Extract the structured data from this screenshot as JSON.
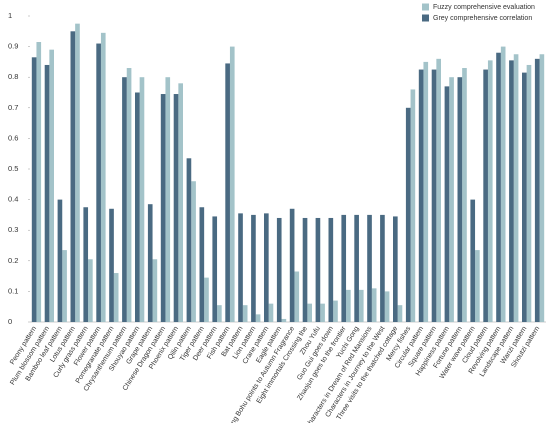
{
  "chart_data": {
    "type": "bar",
    "categories": [
      "Peony pattern",
      "Plum blossom pattern",
      "Bamboo leaf pattern",
      "Lotus pattern",
      "Curly grass pattern",
      "Flower pattern",
      "Pomegranate pattern",
      "Chrysanthemum pattern",
      "Shouyao pattern",
      "Grape pattern",
      "Chinese Dragon pattern",
      "Phoenix pattern",
      "Qilin pattern",
      "Tiger pattern",
      "Deer pattern",
      "Fish pattern",
      "Bat pattern",
      "Lion pattern",
      "Crane pattern",
      "Eagle pattern",
      "Tang Bohu points to Autumn Fragrance",
      "Eight immortals Crossing the",
      "Zhou Yufu",
      "Guo Gui goes down",
      "Zhaojun goes to the frontier",
      "Yuchi Gong",
      "Characters in Dream of Red Mansions",
      "Characters in Journey to the West",
      "Three visits to the thatched cottage",
      "Mercy fishes",
      "Circular pattern",
      "Square pattern",
      "Happiness pattern",
      "Fortune pattern",
      "Water wave pattern",
      "Cloud pattern",
      "Revolving pattern",
      "Landscape pattern",
      "Wanzi pattern",
      "Shoutzi pattern"
    ],
    "series": [
      {
        "name": "Fuzzy comprehensive evaluation",
        "color": "#a3c3c9",
        "values": [
          0.915,
          0.89,
          0.235,
          0.975,
          0.205,
          0.945,
          0.16,
          0.83,
          0.8,
          0.205,
          0.8,
          0.78,
          0.46,
          0.145,
          0.055,
          0.9,
          0.055,
          0.025,
          0.06,
          0.01,
          0.165,
          0.06,
          0.06,
          0.07,
          0.105,
          0.105,
          0.11,
          0.1,
          0.055,
          0.76,
          0.85,
          0.86,
          0.8,
          0.83,
          0.235,
          0.855,
          0.9,
          0.875,
          0.84,
          0.875
        ]
      },
      {
        "name": "Grey comprehensive correlation",
        "color": "#4a6a82",
        "values": [
          0.865,
          0.84,
          0.4,
          0.95,
          0.375,
          0.91,
          0.37,
          0.8,
          0.75,
          0.385,
          0.745,
          0.745,
          0.535,
          0.375,
          0.345,
          0.845,
          0.355,
          0.35,
          0.355,
          0.34,
          0.37,
          0.34,
          0.34,
          0.34,
          0.35,
          0.35,
          0.35,
          0.35,
          0.345,
          0.7,
          0.825,
          0.825,
          0.77,
          0.8,
          0.4,
          0.825,
          0.88,
          0.855,
          0.815,
          0.86
        ]
      }
    ],
    "ylim": [
      0,
      1
    ],
    "yticks": [
      0,
      0.1,
      0.2,
      0.3,
      0.4,
      0.5,
      0.6,
      0.7,
      0.8,
      0.9,
      1
    ],
    "legend": "top-right"
  }
}
